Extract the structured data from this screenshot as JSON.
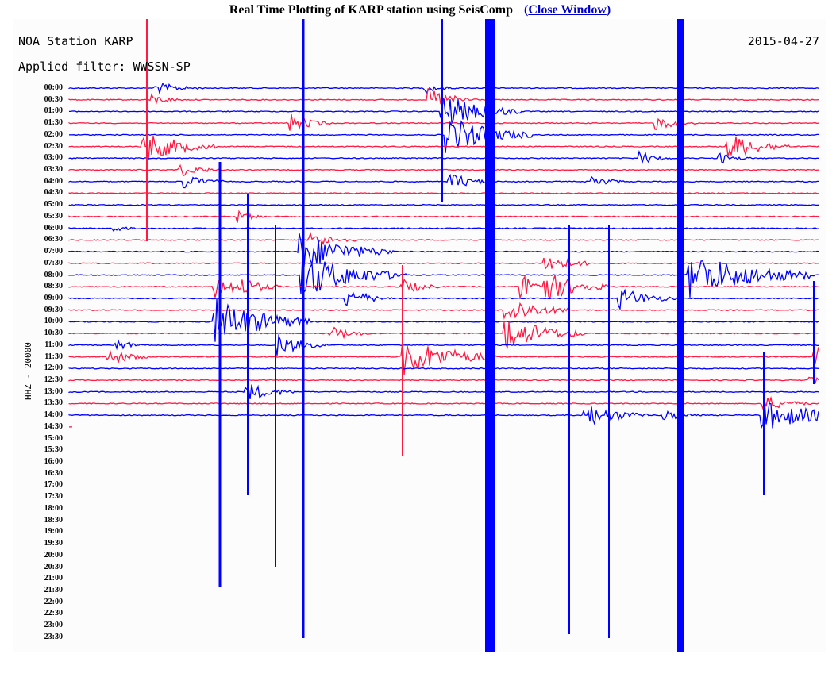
{
  "header": {
    "title": "Real Time Plotting of KARP station using SeisComp",
    "close_open": "(",
    "close_label": "Close Window",
    "close_close": ")"
  },
  "plot": {
    "station": "NOA Station KARP",
    "filter": "Applied filter: WWSSN-SP",
    "date": "2015-04-27",
    "channel": "HHZ - 20000",
    "colors": {
      "even": "#0000ff",
      "odd": "#ff1a44"
    },
    "time_labels": [
      "00:00",
      "00:30",
      "01:00",
      "01:30",
      "02:00",
      "02:30",
      "03:00",
      "03:30",
      "04:00",
      "04:30",
      "05:00",
      "05:30",
      "06:00",
      "06:30",
      "07:00",
      "07:30",
      "08:00",
      "08:30",
      "09:00",
      "09:30",
      "10:00",
      "10:30",
      "11:00",
      "11:30",
      "12:00",
      "12:30",
      "13:00",
      "13:30",
      "14:00",
      "14:30",
      "15:00",
      "15:30",
      "16:00",
      "16:30",
      "17:00",
      "17:30",
      "18:00",
      "18:30",
      "19:00",
      "19:30",
      "20:00",
      "20:30",
      "21:00",
      "21:30",
      "22:00",
      "22:30",
      "23:00",
      "23:30"
    ],
    "recorded_rows": 29
  }
}
